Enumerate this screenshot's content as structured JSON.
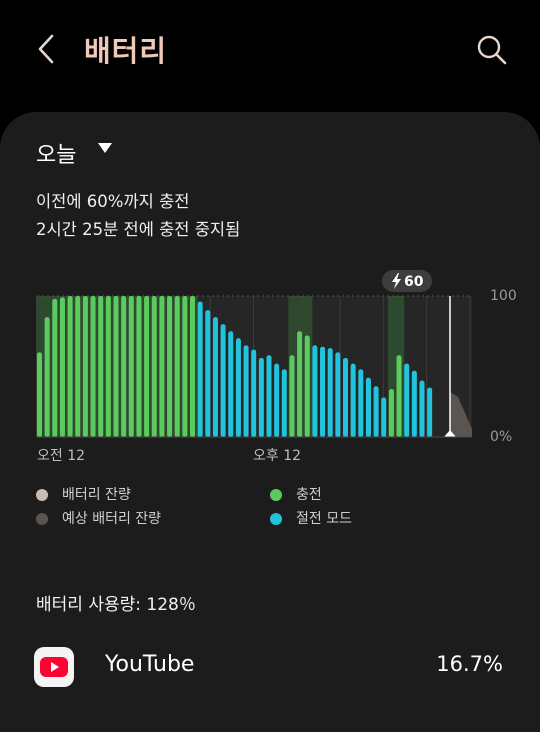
{
  "header": {
    "title": "배터리",
    "back_icon": "chevron-left-icon",
    "search_icon": "search-icon",
    "title_color": "#f0c9b8"
  },
  "filter": {
    "period": "오늘"
  },
  "status": {
    "line1": "이전에 60%까지 충전",
    "line2": "2시간 25분 전에 충전 중지됨"
  },
  "chart_data": {
    "type": "bar",
    "ylim": [
      0,
      100
    ],
    "y_ticks": [
      "100",
      "0%"
    ],
    "x_ticks": [
      "오전 12",
      "오후 12"
    ],
    "current_marker": "60",
    "charge_color": "#5ccb5f",
    "saving_color": "#22c4dd",
    "values": [
      60,
      85,
      98,
      99,
      100,
      100,
      100,
      100,
      100,
      100,
      100,
      100,
      100,
      100,
      100,
      100,
      100,
      100,
      100,
      100,
      100,
      96,
      90,
      85,
      80,
      75,
      70,
      65,
      62,
      56,
      58,
      52,
      48,
      58,
      75,
      72,
      65,
      64,
      63,
      60,
      56,
      52,
      48,
      42,
      36,
      28,
      34,
      58,
      52,
      47,
      40,
      35
    ],
    "modes": [
      "c",
      "c",
      "c",
      "c",
      "c",
      "c",
      "c",
      "c",
      "c",
      "c",
      "c",
      "c",
      "c",
      "c",
      "c",
      "c",
      "c",
      "c",
      "c",
      "c",
      "c",
      "s",
      "s",
      "s",
      "s",
      "s",
      "s",
      "s",
      "s",
      "s",
      "s",
      "s",
      "s",
      "c",
      "c",
      "c",
      "s",
      "s",
      "s",
      "s",
      "s",
      "s",
      "s",
      "s",
      "s",
      "s",
      "c",
      "c",
      "s",
      "s",
      "s",
      "s"
    ]
  },
  "legend": [
    {
      "label": "배터리 잔량",
      "color": "#c8bcb4"
    },
    {
      "label": "충전",
      "color": "#5ccb5f"
    },
    {
      "label": "예상 배터리 잔량",
      "color": "#5a5550"
    },
    {
      "label": "절전 모드",
      "color": "#22c4dd"
    }
  ],
  "usage": {
    "total_label": "배터리 사용량: 128％"
  },
  "apps": [
    {
      "name": "YouTube",
      "percent": "16.7%",
      "icon": "youtube-icon",
      "icon_color": "#ff0033"
    }
  ]
}
